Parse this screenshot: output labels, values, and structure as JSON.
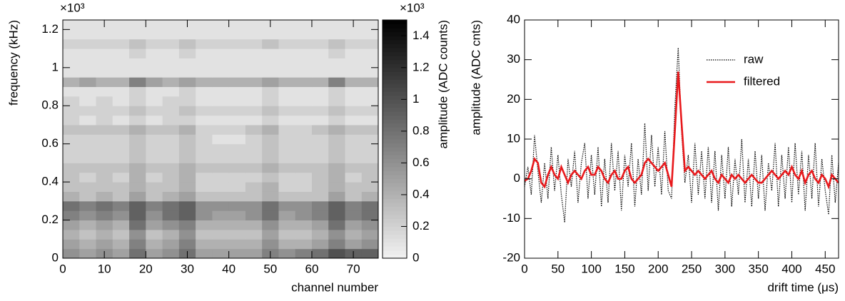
{
  "chart_data": [
    {
      "type": "heatmap",
      "x_label": "channel number",
      "y_label": "frequency (kHz)",
      "z_label": "amplitude (ADC counts)",
      "y_scale_label": "×10³",
      "z_scale_label": "×10³",
      "xlim": [
        0,
        76
      ],
      "ylim": [
        0,
        1.25
      ],
      "zlim": [
        0,
        1.5
      ],
      "xticks": [
        0,
        10,
        20,
        30,
        40,
        50,
        60,
        70
      ],
      "yticks": [
        0,
        0.2,
        0.4,
        0.6,
        0.8,
        1,
        1.2
      ],
      "zticks": [
        0,
        0.2,
        0.4,
        0.6,
        0.8,
        1,
        1.2,
        1.4
      ],
      "colormap": "gray",
      "z": [
        [
          0.6,
          0.5,
          0.6,
          0.5,
          0.8,
          0.5,
          0.6,
          0.8,
          0.5,
          0.5,
          0.5,
          0.5,
          0.7,
          0.6,
          0.7,
          0.8,
          1.0,
          0.9,
          0.9
        ],
        [
          0.5,
          0.4,
          0.5,
          0.4,
          0.7,
          0.4,
          0.5,
          0.7,
          0.4,
          0.4,
          0.4,
          0.4,
          0.6,
          0.4,
          0.4,
          0.5,
          0.7,
          0.5,
          0.6
        ],
        [
          0.4,
          0.3,
          0.4,
          0.3,
          0.6,
          0.3,
          0.4,
          0.6,
          0.3,
          0.3,
          0.3,
          0.3,
          0.5,
          0.3,
          0.3,
          0.4,
          0.6,
          0.4,
          0.5
        ],
        [
          0.5,
          0.4,
          0.5,
          0.4,
          0.8,
          0.5,
          0.6,
          0.7,
          0.4,
          0.4,
          0.4,
          0.4,
          0.6,
          0.4,
          0.4,
          0.5,
          0.8,
          0.5,
          0.6
        ],
        [
          0.7,
          0.6,
          0.7,
          0.6,
          0.9,
          0.6,
          0.8,
          0.9,
          0.6,
          0.5,
          0.5,
          0.6,
          0.8,
          0.5,
          0.6,
          0.7,
          0.9,
          0.7,
          0.8
        ],
        [
          0.8,
          0.7,
          0.8,
          0.7,
          0.9,
          0.7,
          0.8,
          0.9,
          0.6,
          0.6,
          0.6,
          0.6,
          0.8,
          0.6,
          0.6,
          0.7,
          0.9,
          0.7,
          0.8
        ],
        [
          0.4,
          0.3,
          0.4,
          0.3,
          0.5,
          0.3,
          0.4,
          0.5,
          0.3,
          0.3,
          0.3,
          0.3,
          0.4,
          0.3,
          0.3,
          0.3,
          0.5,
          0.3,
          0.4
        ],
        [
          0.3,
          0.3,
          0.3,
          0.3,
          0.4,
          0.3,
          0.3,
          0.4,
          0.2,
          0.2,
          0.2,
          0.3,
          0.4,
          0.2,
          0.2,
          0.3,
          0.4,
          0.3,
          0.3
        ],
        [
          0.3,
          0.2,
          0.3,
          0.2,
          0.4,
          0.2,
          0.3,
          0.4,
          0.2,
          0.2,
          0.2,
          0.2,
          0.3,
          0.2,
          0.2,
          0.3,
          0.4,
          0.2,
          0.3
        ],
        [
          0.3,
          0.3,
          0.3,
          0.3,
          0.4,
          0.3,
          0.3,
          0.4,
          0.3,
          0.3,
          0.3,
          0.3,
          0.4,
          0.3,
          0.3,
          0.3,
          0.4,
          0.3,
          0.3
        ],
        [
          0.2,
          0.2,
          0.2,
          0.2,
          0.3,
          0.2,
          0.2,
          0.3,
          0.2,
          0.2,
          0.2,
          0.2,
          0.3,
          0.2,
          0.2,
          0.2,
          0.3,
          0.2,
          0.2
        ],
        [
          0.2,
          0.2,
          0.2,
          0.2,
          0.3,
          0.2,
          0.2,
          0.3,
          0.2,
          0.2,
          0.2,
          0.2,
          0.3,
          0.2,
          0.2,
          0.2,
          0.3,
          0.2,
          0.2
        ],
        [
          0.2,
          0.2,
          0.2,
          0.2,
          0.3,
          0.2,
          0.2,
          0.3,
          0.2,
          0.1,
          0.1,
          0.2,
          0.3,
          0.2,
          0.2,
          0.2,
          0.3,
          0.2,
          0.2
        ],
        [
          0.3,
          0.3,
          0.3,
          0.3,
          0.4,
          0.3,
          0.3,
          0.4,
          0.2,
          0.2,
          0.2,
          0.3,
          0.4,
          0.2,
          0.2,
          0.3,
          0.4,
          0.3,
          0.3
        ],
        [
          0.2,
          0.1,
          0.2,
          0.1,
          0.2,
          0.1,
          0.2,
          0.2,
          0.1,
          0.1,
          0.1,
          0.1,
          0.2,
          0.1,
          0.1,
          0.1,
          0.2,
          0.1,
          0.1
        ],
        [
          0.2,
          0.2,
          0.2,
          0.2,
          0.3,
          0.2,
          0.2,
          0.3,
          0.2,
          0.2,
          0.2,
          0.2,
          0.3,
          0.2,
          0.2,
          0.2,
          0.3,
          0.2,
          0.2
        ],
        [
          0.2,
          0.1,
          0.2,
          0.1,
          0.2,
          0.1,
          0.2,
          0.2,
          0.1,
          0.1,
          0.1,
          0.1,
          0.2,
          0.1,
          0.1,
          0.1,
          0.2,
          0.1,
          0.1
        ],
        [
          0.1,
          0.1,
          0.1,
          0.1,
          0.2,
          0.1,
          0.1,
          0.2,
          0.1,
          0.1,
          0.1,
          0.1,
          0.2,
          0.1,
          0.1,
          0.1,
          0.2,
          0.1,
          0.1
        ],
        [
          0.4,
          0.5,
          0.4,
          0.4,
          0.7,
          0.5,
          0.4,
          0.5,
          0.4,
          0.4,
          0.4,
          0.4,
          0.5,
          0.4,
          0.4,
          0.4,
          0.7,
          0.4,
          0.4
        ],
        [
          0.1,
          0.1,
          0.1,
          0.1,
          0.1,
          0.1,
          0.1,
          0.1,
          0.1,
          0.1,
          0.1,
          0.1,
          0.1,
          0.1,
          0.1,
          0.1,
          0.1,
          0.1,
          0.1
        ],
        [
          0.1,
          0.1,
          0.1,
          0.1,
          0.1,
          0.1,
          0.1,
          0.1,
          0.1,
          0.1,
          0.1,
          0.1,
          0.1,
          0.1,
          0.1,
          0.1,
          0.1,
          0.1,
          0.1
        ],
        [
          0.1,
          0.1,
          0.1,
          0.1,
          0.2,
          0.1,
          0.1,
          0.2,
          0.1,
          0.1,
          0.1,
          0.1,
          0.1,
          0.1,
          0.1,
          0.1,
          0.2,
          0.1,
          0.1
        ],
        [
          0.2,
          0.2,
          0.2,
          0.2,
          0.3,
          0.2,
          0.2,
          0.3,
          0.2,
          0.2,
          0.2,
          0.2,
          0.3,
          0.2,
          0.2,
          0.2,
          0.3,
          0.2,
          0.2
        ],
        [
          0.1,
          0.1,
          0.1,
          0.1,
          0.1,
          0.1,
          0.1,
          0.1,
          0.1,
          0.1,
          0.1,
          0.1,
          0.1,
          0.1,
          0.1,
          0.1,
          0.1,
          0.1,
          0.1
        ],
        [
          0.1,
          0.1,
          0.1,
          0.1,
          0.1,
          0.1,
          0.1,
          0.1,
          0.1,
          0.1,
          0.1,
          0.1,
          0.1,
          0.1,
          0.1,
          0.1,
          0.1,
          0.1,
          0.1
        ]
      ]
    },
    {
      "type": "line",
      "x_label": "drift time (μs)",
      "y_label": "amplitude (ADC cnts)",
      "xlim": [
        0,
        470
      ],
      "ylim": [
        -20,
        40
      ],
      "xticks": [
        0,
        50,
        100,
        150,
        200,
        250,
        300,
        350,
        400,
        450
      ],
      "yticks": [
        -20,
        -10,
        0,
        10,
        20,
        30,
        40
      ],
      "legend": "upper right",
      "x": [
        0,
        5,
        10,
        15,
        20,
        25,
        30,
        35,
        40,
        45,
        50,
        55,
        60,
        65,
        70,
        75,
        80,
        85,
        90,
        95,
        100,
        105,
        110,
        115,
        120,
        125,
        130,
        135,
        140,
        145,
        150,
        155,
        160,
        165,
        170,
        175,
        180,
        185,
        190,
        195,
        200,
        205,
        210,
        215,
        220,
        225,
        230,
        235,
        240,
        245,
        250,
        255,
        260,
        265,
        270,
        275,
        280,
        285,
        290,
        295,
        300,
        305,
        310,
        315,
        320,
        325,
        330,
        335,
        340,
        345,
        350,
        355,
        360,
        365,
        370,
        375,
        380,
        385,
        390,
        395,
        400,
        405,
        410,
        415,
        420,
        425,
        430,
        435,
        440,
        445,
        450,
        455,
        460,
        465,
        470
      ],
      "series": [
        {
          "name": "raw",
          "color": "#000000",
          "style": "dotted",
          "values": [
            -2,
            3,
            -4,
            11,
            2,
            -6,
            4,
            -5,
            8,
            -3,
            6,
            -4,
            -11,
            5,
            -2,
            7,
            -6,
            4,
            9,
            -5,
            6,
            -4,
            8,
            -7,
            5,
            -6,
            9,
            -3,
            7,
            -8,
            6,
            -2,
            9,
            -7,
            5,
            -4,
            14,
            -3,
            11,
            -2,
            8,
            -4,
            12,
            -3,
            -5,
            18,
            33,
            12,
            -1,
            6,
            -6,
            9,
            -4,
            7,
            -5,
            8,
            -6,
            7,
            -8,
            6,
            -5,
            8,
            -7,
            5,
            -4,
            10,
            -6,
            5,
            -7,
            7,
            -5,
            6,
            -8,
            4,
            -3,
            9,
            -7,
            6,
            -5,
            8,
            -6,
            9,
            -4,
            7,
            -8,
            6,
            -5,
            9,
            -7,
            5,
            -3,
            -9,
            6,
            -6,
            4
          ]
        },
        {
          "name": "filtered",
          "color": "#e8191c",
          "style": "solid",
          "values": [
            -0.5,
            0,
            2,
            5,
            4,
            -1,
            -2,
            1,
            3,
            1,
            0,
            3,
            1,
            -1,
            1,
            2,
            1,
            0,
            2,
            3,
            1,
            1,
            3,
            2,
            0,
            -1,
            1,
            2,
            0,
            0,
            2,
            3,
            0,
            -1,
            0,
            1,
            4,
            5,
            4,
            3,
            2,
            3,
            4,
            1,
            -2,
            12,
            27,
            14,
            2,
            3,
            2,
            1,
            2,
            1,
            0,
            1,
            2,
            0,
            -1,
            1,
            0,
            -1,
            1,
            0,
            1,
            0,
            -1,
            0,
            1,
            0,
            -1,
            -1,
            0,
            1,
            2,
            1,
            0,
            1,
            2,
            1,
            3,
            1,
            0,
            2,
            -1,
            1,
            2,
            0,
            -1,
            1,
            0,
            -2,
            1,
            0,
            -1
          ]
        }
      ]
    }
  ]
}
